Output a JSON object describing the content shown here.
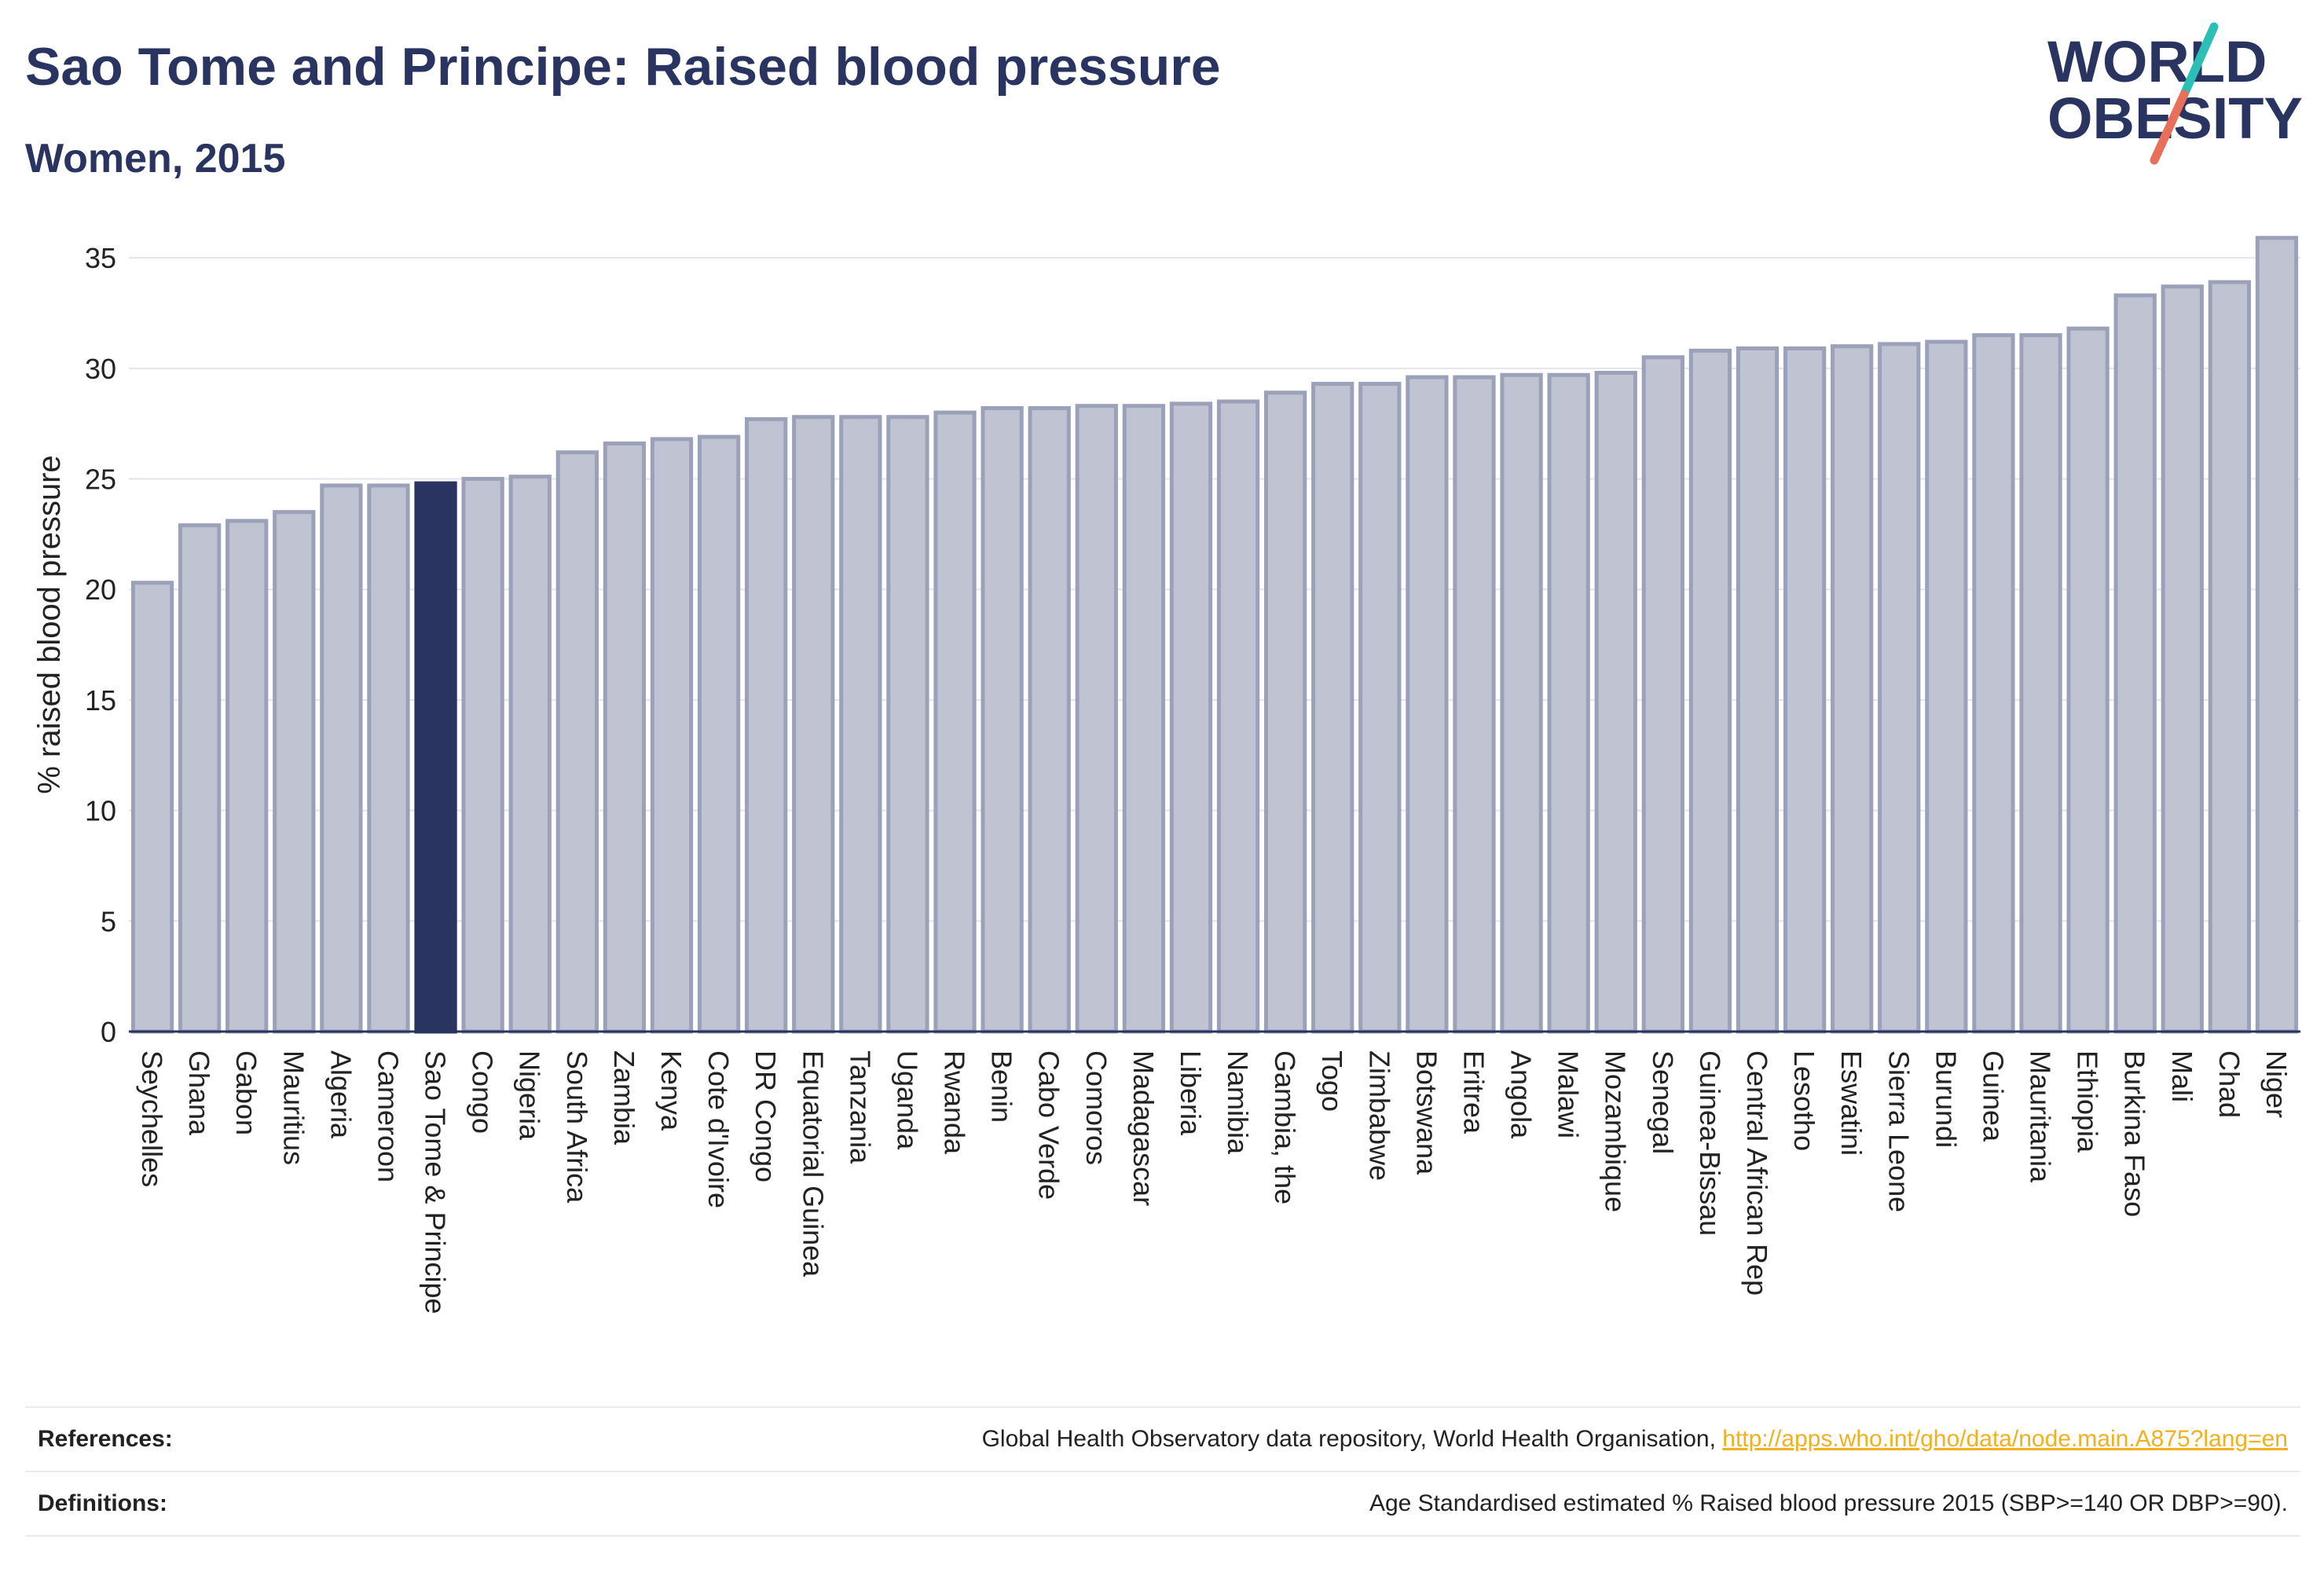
{
  "header": {
    "title": "Sao Tome and Principe: Raised blood pressure",
    "subtitle": "Women, 2015"
  },
  "logo": {
    "line1": "WORLD",
    "line2": "OBESITY",
    "colors": {
      "text": "#2a3460",
      "slash_top": "#2bbfb5",
      "slash_bottom": "#e8705a"
    }
  },
  "chart_data": {
    "type": "bar",
    "title": "Sao Tome and Principe: Raised blood pressure",
    "subtitle": "Women, 2015",
    "xlabel": "",
    "ylabel": "% raised blood pressure",
    "ylim": [
      0,
      36
    ],
    "yticks": [
      0,
      5,
      10,
      15,
      20,
      25,
      30,
      35
    ],
    "grid": true,
    "legend": "none",
    "highlight": "Sao Tome & Principe",
    "colors": {
      "bar": "#c0c4d2",
      "bar_edge": "#9aa1b9",
      "highlight": "#2a3460",
      "grid": "#e3e5ec",
      "axis": "#2a3460"
    },
    "categories": [
      "Seychelles",
      "Ghana",
      "Gabon",
      "Mauritius",
      "Algeria",
      "Cameroon",
      "Sao Tome & Principe",
      "Congo",
      "Nigeria",
      "South Africa",
      "Zambia",
      "Kenya",
      "Cote d'Ivoire",
      "DR Congo",
      "Equatorial Guinea",
      "Tanzania",
      "Uganda",
      "Rwanda",
      "Benin",
      "Cabo Verde",
      "Comoros",
      "Madagascar",
      "Liberia",
      "Namibia",
      "Gambia, the",
      "Togo",
      "Zimbabwe",
      "Botswana",
      "Eritrea",
      "Angola",
      "Malawi",
      "Mozambique",
      "Senegal",
      "Guinea-Bissau",
      "Central African Rep",
      "Lesotho",
      "Eswatini",
      "Sierra Leone",
      "Burundi",
      "Guinea",
      "Mauritania",
      "Ethiopia",
      "Burkina Faso",
      "Mali",
      "Chad",
      "Niger"
    ],
    "values": [
      20.3,
      22.9,
      23.1,
      23.5,
      24.7,
      24.7,
      24.8,
      25.0,
      25.1,
      26.2,
      26.6,
      26.8,
      26.9,
      27.7,
      27.8,
      27.8,
      27.8,
      28.0,
      28.2,
      28.2,
      28.3,
      28.3,
      28.4,
      28.5,
      28.9,
      29.3,
      29.3,
      29.6,
      29.6,
      29.7,
      29.7,
      29.8,
      30.5,
      30.8,
      30.9,
      30.9,
      31.0,
      31.1,
      31.2,
      31.5,
      31.5,
      31.8,
      33.3,
      33.7,
      33.9,
      35.9
    ]
  },
  "footer": {
    "references_label": "References:",
    "references_text": "Global Health Observatory data repository, World Health Organisation,",
    "references_link": "http://apps.who.int/gho/data/node.main.A875?lang=en",
    "definitions_label": "Definitions:",
    "definitions_text": "Age Standardised estimated % Raised blood pressure 2015 (SBP>=140 OR DBP>=90)."
  }
}
